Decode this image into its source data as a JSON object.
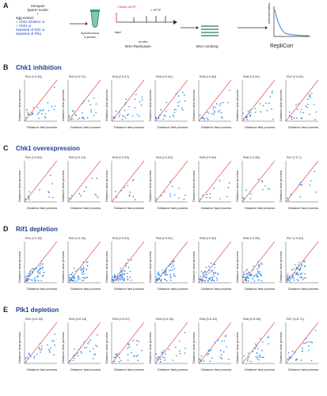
{
  "panelA": {
    "letter": "A",
    "xenopus": "Xenopus",
    "sperm": "Sperm nuclei",
    "plus": "+",
    "egg": "egg extract",
    "inhibitor": "+ Chk1 inhibitor or",
    "chk1": "+ Chk1 or",
    "depleted1": "depleted of Rif1 or",
    "depleted2": "depleted of Plk1",
    "synch1": "Synchronous",
    "synch2": "S-phase",
    "biotin": "+ Biotin-dUTP",
    "chase": "+ dTTP",
    "start": "start",
    "invitro": "in vitro",
    "dnarep": "DNA Replication",
    "combing": "DNA combing",
    "replicorr": "RepliCorr",
    "yaxis": "autocorrelation"
  },
  "sections": [
    {
      "letter": "B",
      "title": "Chk1 inhibition",
      "xlab": "Distance fast process",
      "ylab": "Distance slow process",
      "labels": [
        "Rx1 (f 0.45)",
        "Rx2 (f 0.71)",
        "Rx3 (f 0.37)",
        "Rx4 (f 0.41)",
        "Rx5 (f 0.48)",
        "Rx6 (f 0.31)",
        "Rx7 (f 0.24)"
      ]
    },
    {
      "letter": "C",
      "title": "Chk1 overexpression",
      "xlab": "Distance fast process",
      "ylab": "Distance slow process",
      "labels": [
        "Rx1 (f 0.54)",
        "Rx2 (f 0.19)",
        "Rx3 (f 0.33)",
        "Rx4 (f 0.30)",
        "Rx5 (f 0.46)",
        "Rx6 (f 0.39)",
        "Rx7 (f 0.7)"
      ]
    },
    {
      "letter": "D",
      "title": "Rif1 depletion",
      "xlab": "Distance fast process",
      "ylab": "Distance slow process",
      "labels": [
        "Rx1 (f 0.15)",
        "Rx2 (f 0.18)",
        "Rx3 (f 0.20)",
        "Rx4 (f 0.31)",
        "Rx5 (f 0.46)",
        "Rx6 (f 0.39)",
        "Rx7 (f 0.40)"
      ]
    },
    {
      "letter": "E",
      "title": "Plk1 depletion",
      "xlab": "Distance fast process",
      "ylab": "Distance slow process",
      "labels": [
        "Rx1 (f=0.30)",
        "Rx2 (f=0.16)",
        "Rx3 (f=0.27)",
        "Rx4 (f=0.33)",
        "Rx5 (f=0.42)",
        "Rx6 (f=0.55)",
        "Rx7 (f=0.71)"
      ]
    }
  ],
  "colors": {
    "points": "#2e86de",
    "diagonal": "#e02020",
    "title": "#1f3f8f",
    "blue": "#1f4fb4",
    "red": "#e02020",
    "curve": "#2e86de"
  }
}
